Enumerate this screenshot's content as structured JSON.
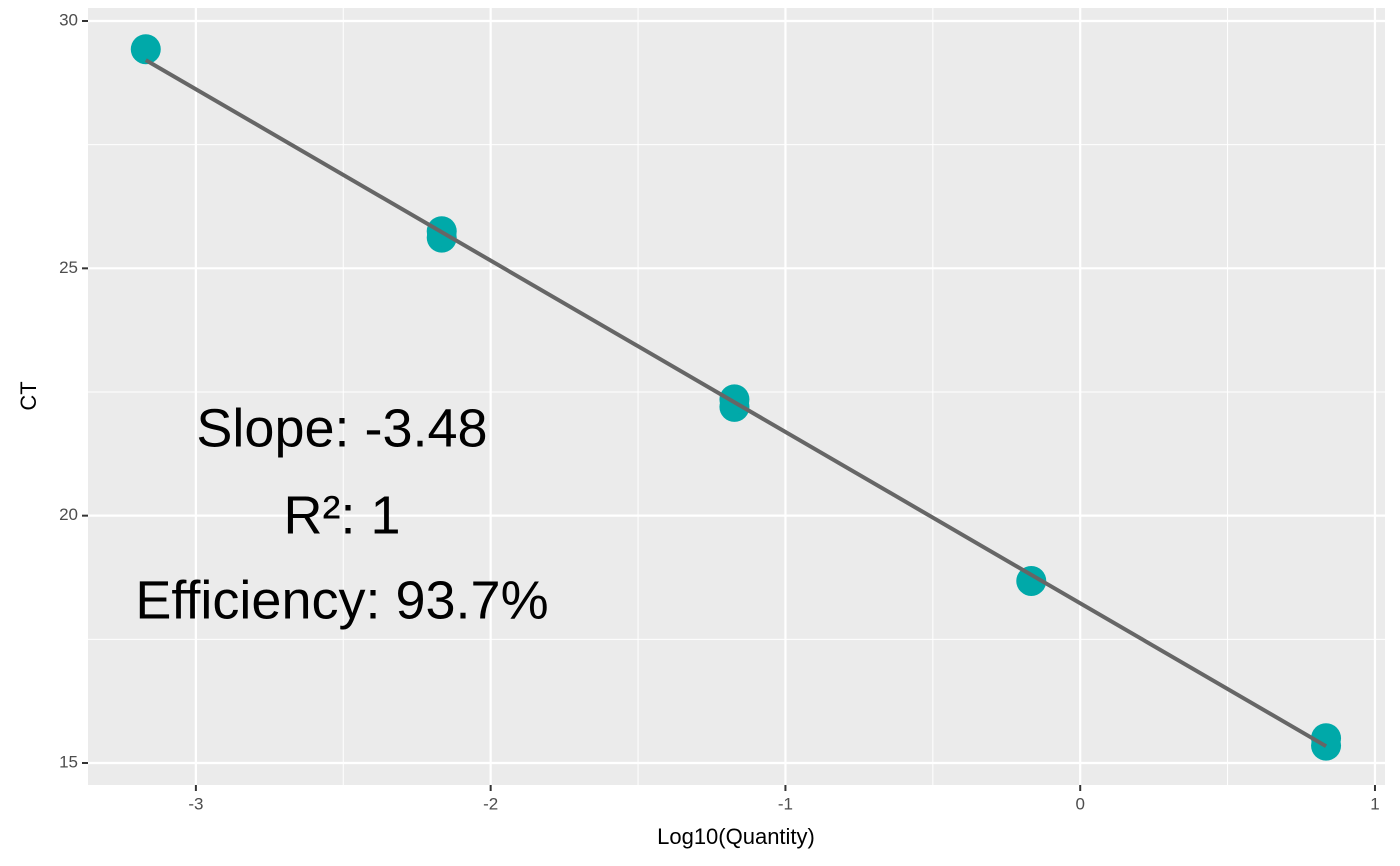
{
  "chart_data": {
    "type": "scatter",
    "x_label": "Log10(Quantity)",
    "y_label": "CT",
    "xlim": [
      -3.366,
      1.034
    ],
    "ylim": [
      14.555,
      30.263
    ],
    "xticks": [
      -3,
      -2,
      -1,
      0,
      1
    ],
    "yticks": [
      15,
      20,
      25,
      30
    ],
    "x_minor_grid": [
      -2.5,
      -1.5,
      -0.5,
      0.5
    ],
    "y_minor_grid": [
      17.5,
      22.5,
      27.5
    ],
    "grid": true,
    "panel_color": "#ebebeb",
    "series": [
      {
        "color": "#00a9a9",
        "x": [
          -3.17,
          -2.166,
          -2.166,
          -1.173,
          -1.173,
          -0.166,
          0.834,
          0.834
        ],
        "values": [
          29.43,
          25.62,
          25.75,
          22.2,
          22.35,
          18.68,
          15.35,
          15.5
        ]
      }
    ],
    "fit": {
      "color": "#666666",
      "x": [
        -3.17,
        0.834
      ],
      "values": [
        29.21,
        15.34
      ]
    },
    "annotations": [
      "Slope: -3.48",
      "R²: 1",
      "Efficiency: 93.7%"
    ]
  }
}
